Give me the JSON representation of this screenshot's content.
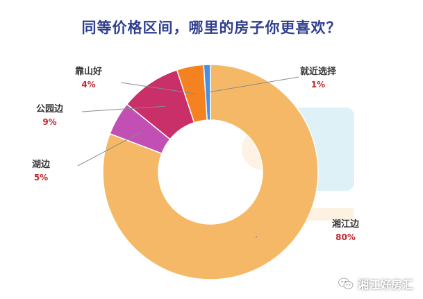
{
  "chart_data": {
    "type": "pie",
    "title": "同等价格区间，哪里的房子你更喜欢？",
    "donut": true,
    "legend": "none",
    "categories": [
      "湘江边",
      "湖边",
      "公园边",
      "靠山好",
      "就近选择"
    ],
    "values": [
      80,
      5,
      9,
      4,
      1
    ],
    "value_labels": [
      "80%",
      "5%",
      "9%",
      "4%",
      "1%"
    ],
    "colors": [
      "#f5b866",
      "#c24fb4",
      "#c92f68",
      "#f58220",
      "#4a8fe2"
    ]
  },
  "watermark": {
    "text": "湘江好房汇",
    "icon": "wechat-icon"
  }
}
